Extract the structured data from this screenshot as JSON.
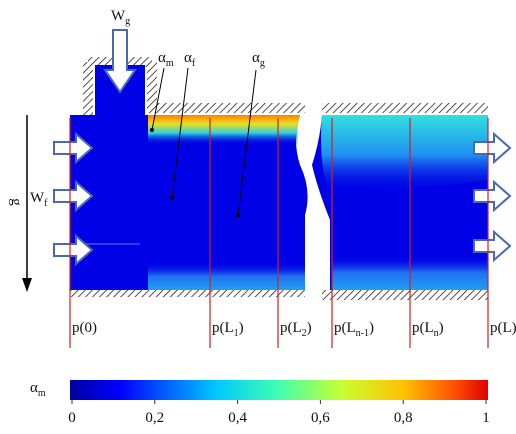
{
  "annotations": {
    "gas_inlet": {
      "base": "W",
      "sub": "g"
    },
    "liquid_inlet": {
      "base": "W",
      "sub": "f"
    },
    "gravity": "g",
    "alpha_m": {
      "base": "α",
      "sub": "m"
    },
    "alpha_f": {
      "base": "α",
      "sub": "f"
    },
    "alpha_g": {
      "base": "α",
      "sub": "g"
    }
  },
  "pressure_points": [
    {
      "base": "p(0)"
    },
    {
      "base": "p(L",
      "sub": "1",
      "end": ")"
    },
    {
      "base": "p(L",
      "sub": "2",
      "end": ")"
    },
    {
      "base": "p(L",
      "sub": "n-1",
      "end": ")"
    },
    {
      "base": "p(L",
      "sub": "n",
      "end": ")"
    },
    {
      "base": "p(L)"
    }
  ],
  "colorbar": {
    "label": {
      "base": "α",
      "sub": "m"
    },
    "lim": [
      0,
      1
    ],
    "ticks": [
      0,
      {
        "value": 0.2,
        "label": "0,2"
      },
      {
        "value": 0.4,
        "label": "0,4"
      },
      {
        "value": 0.6,
        "label": "0,6"
      },
      {
        "value": 0.8,
        "label": "0,8"
      },
      1
    ]
  }
}
